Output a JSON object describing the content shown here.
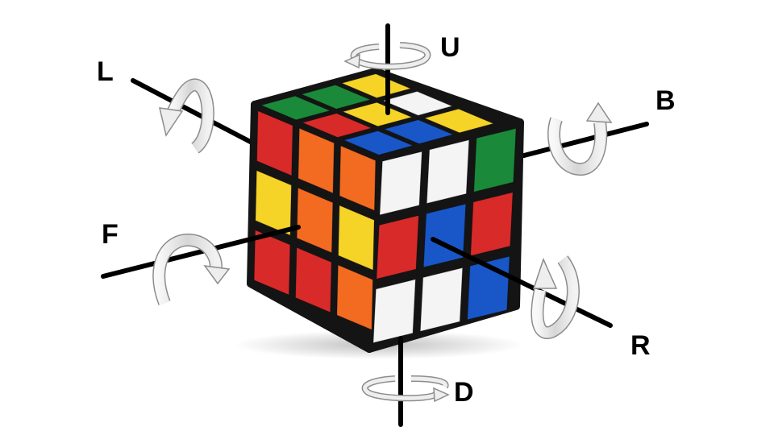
{
  "labels": {
    "up": "U",
    "left": "L",
    "back": "B",
    "front": "F",
    "right": "R",
    "down": "D"
  },
  "colors": {
    "red": "#d92a2a",
    "orange": "#f36b21",
    "yellow": "#f6d327",
    "white": "#f4f4f4",
    "blue": "#1957c9",
    "green": "#1a8a3a",
    "body": "#141414",
    "axis": "#000000",
    "arrow_fill": "#e6e6e6",
    "arrow_stroke": "#8c8c8c"
  },
  "faces": {
    "top": [
      "green",
      "green",
      "yellow",
      "red",
      "yellow",
      "white",
      "blue",
      "blue",
      "yellow"
    ],
    "left": [
      "red",
      "orange",
      "orange",
      "yellow",
      "orange",
      "yellow",
      "red",
      "red",
      "orange"
    ],
    "right": [
      "white",
      "white",
      "green",
      "red",
      "blue",
      "red",
      "white",
      "white",
      "blue"
    ]
  }
}
